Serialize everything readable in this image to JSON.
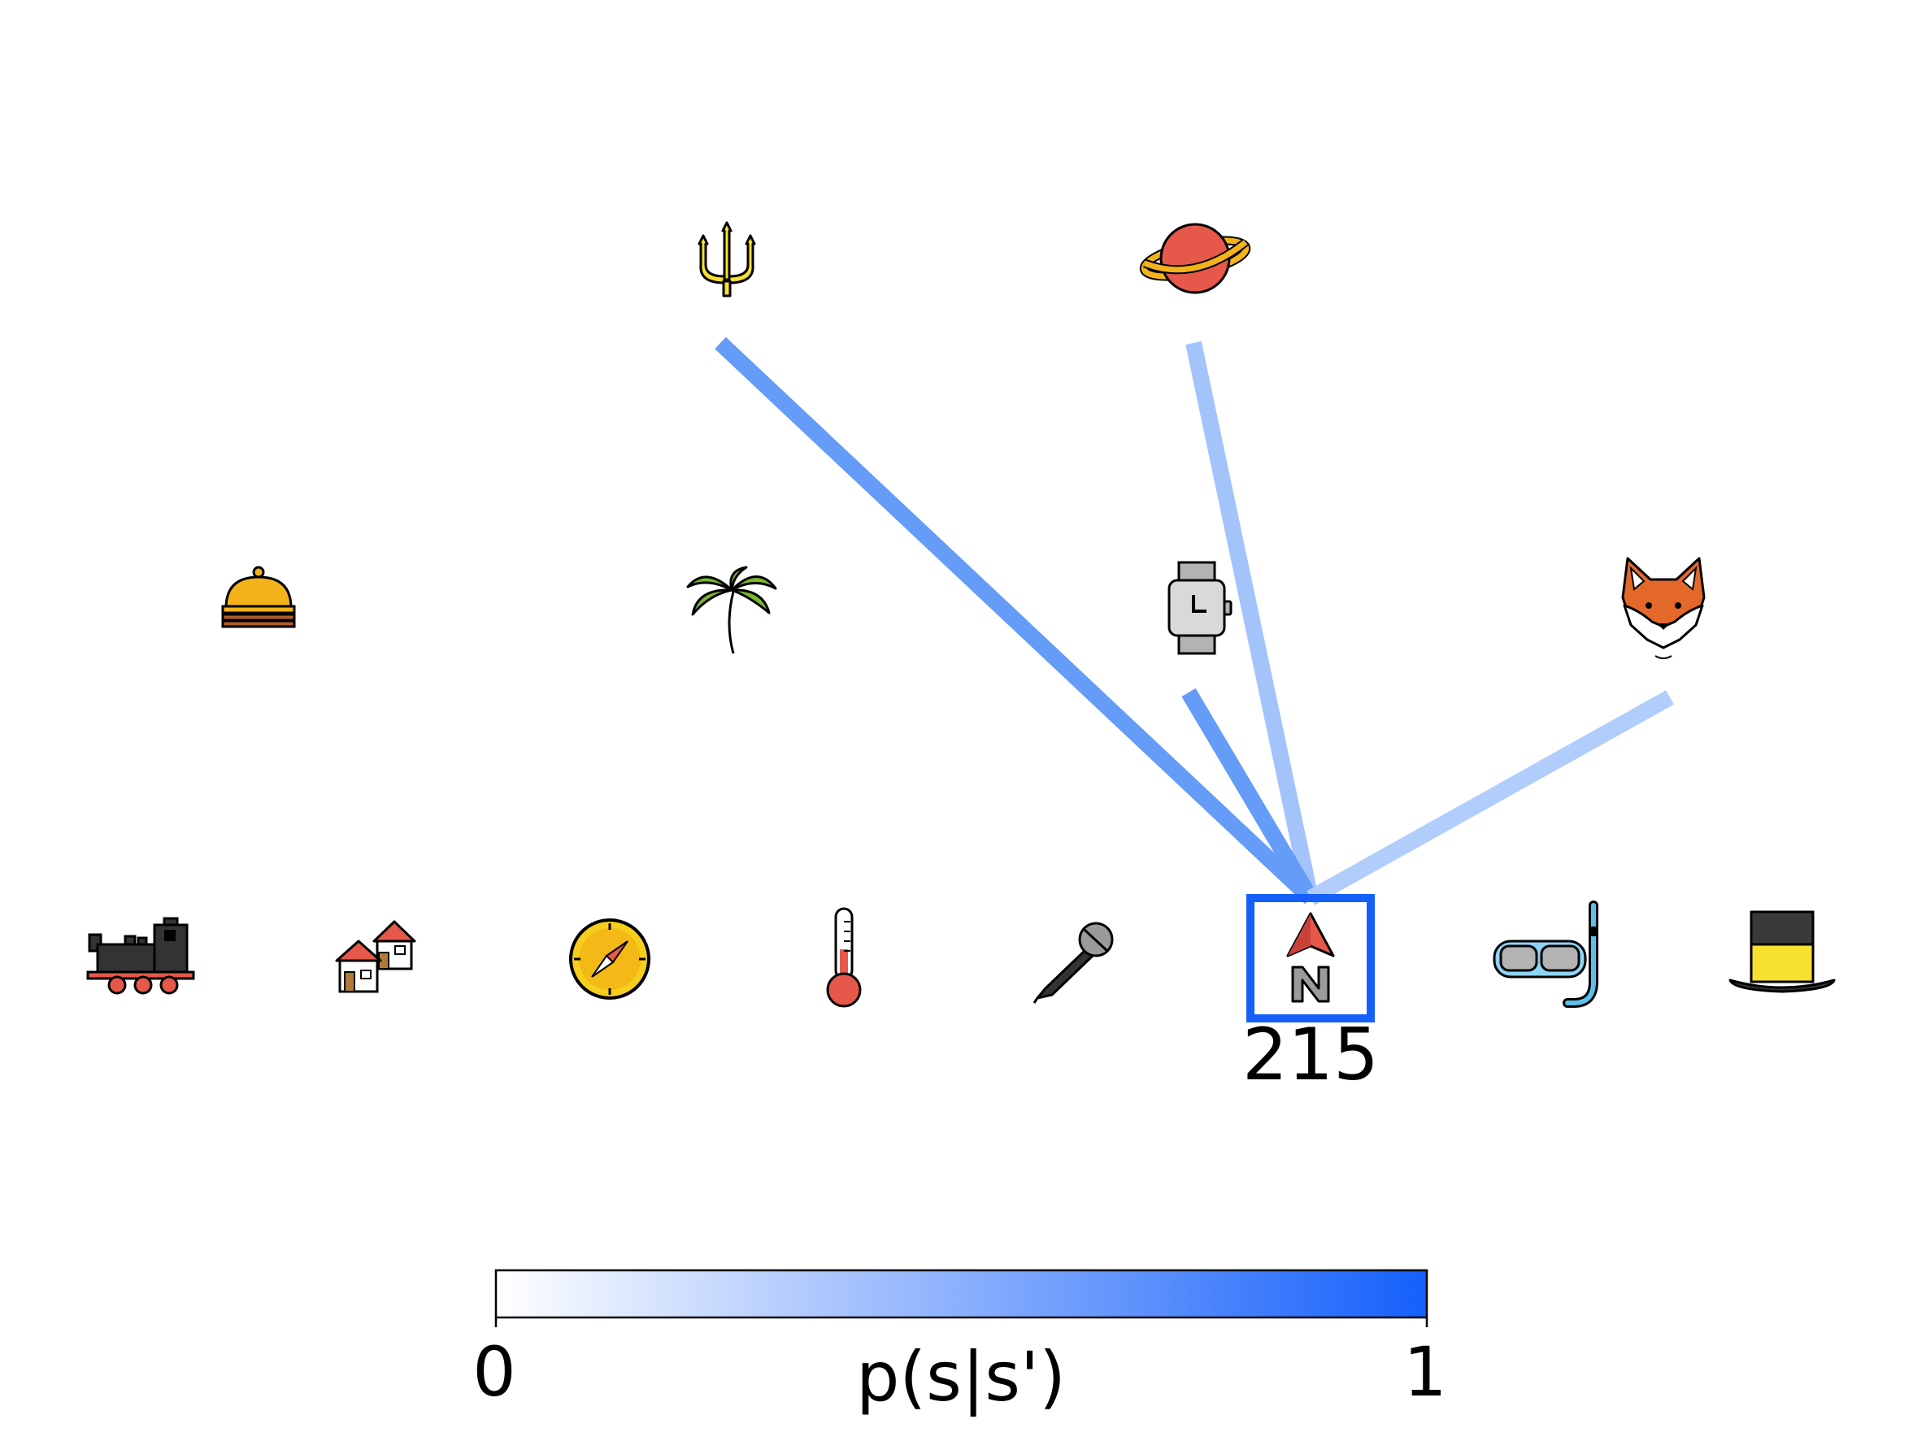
{
  "current_node": {
    "id": "215",
    "icon": "north-arrow-icon",
    "highlight_color": "#1560fb"
  },
  "nodes": [
    {
      "icon": "trident-icon",
      "row": 0,
      "col": 2
    },
    {
      "icon": "ringed-planet-icon",
      "row": 0,
      "col": 4
    },
    {
      "icon": "service-bell-icon",
      "row": 1,
      "col": 0
    },
    {
      "icon": "palm-tree-icon",
      "row": 1,
      "col": 2
    },
    {
      "icon": "wristwatch-icon",
      "row": 1,
      "col": 4
    },
    {
      "icon": "fox-face-icon",
      "row": 1,
      "col": 6
    },
    {
      "icon": "locomotive-icon",
      "row": 2,
      "col": 0
    },
    {
      "icon": "houses-icon",
      "row": 2,
      "col": 1
    },
    {
      "icon": "compass-icon",
      "row": 2,
      "col": 2
    },
    {
      "icon": "thermometer-icon",
      "row": 2,
      "col": 3
    },
    {
      "icon": "microphone-icon",
      "row": 2,
      "col": 4
    },
    {
      "icon": "north-arrow-icon",
      "row": 2,
      "col": 5
    },
    {
      "icon": "snorkel-mask-icon",
      "row": 2,
      "col": 6
    },
    {
      "icon": "top-hat-icon",
      "row": 2,
      "col": 7
    }
  ],
  "edges": [
    {
      "from": "trident-icon",
      "to": "north-arrow-icon",
      "p": 0.62,
      "color": "#649cf7"
    },
    {
      "from": "ringed-planet-icon",
      "to": "north-arrow-icon",
      "p": 0.38,
      "color": "#a3c3fb"
    },
    {
      "from": "wristwatch-icon",
      "to": "north-arrow-icon",
      "p": 0.62,
      "color": "#649cf7"
    },
    {
      "from": "fox-face-icon",
      "to": "north-arrow-icon",
      "p": 0.32,
      "color": "#b1cdfc"
    }
  ],
  "colorbar": {
    "label": "p(s|s')",
    "min_label": "0",
    "max_label": "1",
    "color_low": "#ffffff",
    "color_high": "#1560fb"
  }
}
